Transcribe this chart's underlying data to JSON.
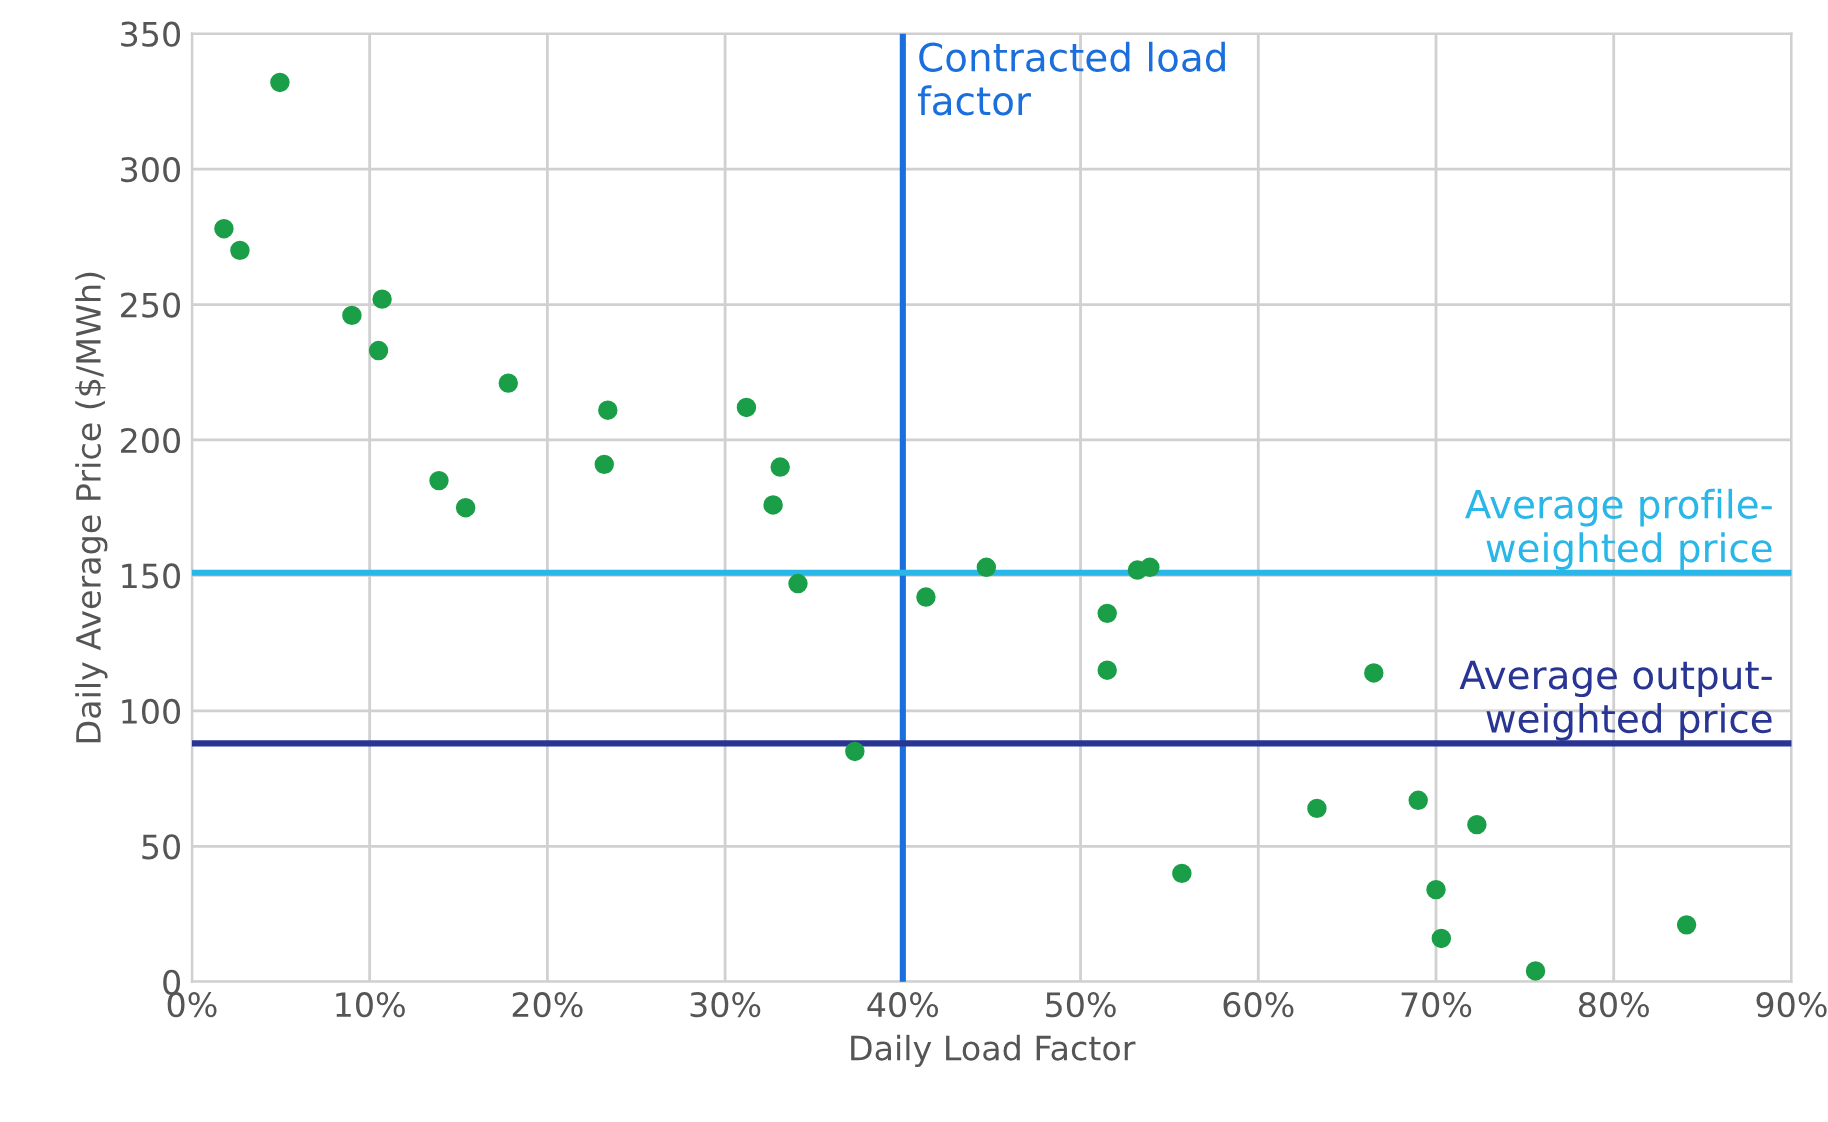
{
  "chart_data": {
    "type": "scatter",
    "xlabel": "Daily Load Factor",
    "ylabel": "Daily Average Price ($/MWh)",
    "series": [
      {
        "color": "#1a9e48",
        "x": [
          4.95,
          1.8,
          2.7,
          9.0,
          10.7,
          10.5,
          17.8,
          13.9,
          15.4,
          23.4,
          23.2,
          31.2,
          33.1,
          32.7,
          34.1,
          37.3,
          41.3,
          44.7,
          51.5,
          51.5,
          53.2,
          53.9,
          55.7,
          63.3,
          66.5,
          69.0,
          72.3,
          70.0,
          70.3,
          75.6,
          84.1
        ],
        "values": [
          332,
          278,
          270,
          246,
          252,
          233,
          221,
          185,
          175,
          211,
          191,
          212,
          190,
          176,
          147,
          85,
          142,
          153,
          136,
          115,
          152,
          153,
          40,
          64,
          114,
          67,
          58,
          34,
          16,
          4,
          21
        ]
      }
    ],
    "xlim": [
      0,
      90
    ],
    "ylim": [
      0,
      350
    ],
    "xticks": [
      {
        "value": 0,
        "label": "0%"
      },
      {
        "value": 10,
        "label": "10%"
      },
      {
        "value": 20,
        "label": "20%"
      },
      {
        "value": 30,
        "label": "30%"
      },
      {
        "value": 40,
        "label": "40%"
      },
      {
        "value": 50,
        "label": "50%"
      },
      {
        "value": 60,
        "label": "60%"
      },
      {
        "value": 70,
        "label": "70%"
      },
      {
        "value": 80,
        "label": "80%"
      },
      {
        "value": 90,
        "label": "90%"
      }
    ],
    "yticks": [
      0,
      50,
      100,
      150,
      200,
      250,
      300,
      350
    ],
    "grid": true,
    "marker": "circle",
    "ref_lines": [
      {
        "axis": "x",
        "value": 40,
        "label": "Contracted load\nfactor",
        "color": "#1a6fdc"
      },
      {
        "axis": "y",
        "value": 151,
        "label": "Average profile-\nweighted price",
        "color": "#29b6e8"
      },
      {
        "axis": "y",
        "value": 88,
        "label": "Average output-\nweighted price",
        "color": "#283593"
      }
    ]
  }
}
